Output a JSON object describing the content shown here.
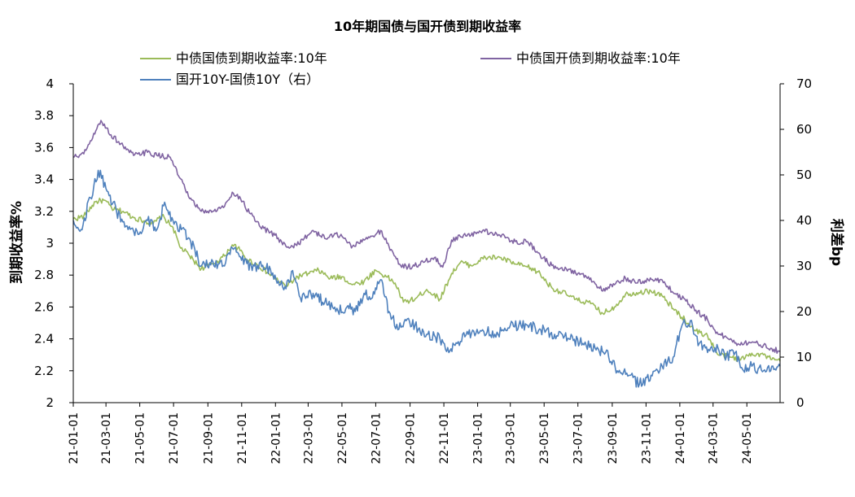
{
  "chart_data": {
    "type": "line",
    "title": "10年期国债与国开债到期收益率",
    "y_left": {
      "label": "到期收益率%",
      "range": [
        2,
        4
      ],
      "ticks": [
        "2",
        "2.2",
        "2.4",
        "2.6",
        "2.8",
        "3",
        "3.2",
        "3.4",
        "3.6",
        "3.8",
        "4"
      ]
    },
    "y_right": {
      "label": "利差bp",
      "range": [
        0,
        70
      ],
      "ticks": [
        "0",
        "10",
        "20",
        "30",
        "40",
        "50",
        "60",
        "70"
      ]
    },
    "x_ticks": [
      "21-01-01",
      "21-03-01",
      "21-05-01",
      "21-07-01",
      "21-09-01",
      "21-11-01",
      "22-01-01",
      "22-03-01",
      "22-05-01",
      "22-07-01",
      "22-09-01",
      "22-11-01",
      "23-01-01",
      "23-03-01",
      "23-05-01",
      "23-07-01",
      "23-09-01",
      "23-11-01",
      "24-01-01",
      "24-03-01",
      "24-05-01"
    ],
    "x_range": [
      "2021-01-01",
      "2024-06-30"
    ],
    "legend_position": "top",
    "series": [
      {
        "name": "中债国债到期收益率:10年",
        "axis": "left",
        "color": "#9bbb59",
        "points": [
          [
            "2021-01-01",
            3.15
          ],
          [
            "2021-01-20",
            3.17
          ],
          [
            "2021-02-10",
            3.26
          ],
          [
            "2021-02-25",
            3.27
          ],
          [
            "2021-03-15",
            3.21
          ],
          [
            "2021-04-01",
            3.2
          ],
          [
            "2021-04-20",
            3.16
          ],
          [
            "2021-05-10",
            3.14
          ],
          [
            "2021-05-25",
            3.12
          ],
          [
            "2021-06-10",
            3.17
          ],
          [
            "2021-06-30",
            3.1
          ],
          [
            "2021-07-12",
            2.98
          ],
          [
            "2021-07-30",
            2.92
          ],
          [
            "2021-08-20",
            2.84
          ],
          [
            "2021-09-10",
            2.87
          ],
          [
            "2021-10-01",
            2.92
          ],
          [
            "2021-10-15",
            2.99
          ],
          [
            "2021-10-25",
            2.97
          ],
          [
            "2021-11-10",
            2.9
          ],
          [
            "2021-12-01",
            2.86
          ],
          [
            "2021-12-31",
            2.78
          ],
          [
            "2022-01-20",
            2.73
          ],
          [
            "2022-02-10",
            2.79
          ],
          [
            "2022-03-01",
            2.81
          ],
          [
            "2022-03-20",
            2.83
          ],
          [
            "2022-04-10",
            2.78
          ],
          [
            "2022-05-01",
            2.79
          ],
          [
            "2022-05-20",
            2.74
          ],
          [
            "2022-06-10",
            2.76
          ],
          [
            "2022-07-01",
            2.83
          ],
          [
            "2022-07-20",
            2.79
          ],
          [
            "2022-08-05",
            2.75
          ],
          [
            "2022-08-20",
            2.63
          ],
          [
            "2022-09-10",
            2.65
          ],
          [
            "2022-10-01",
            2.71
          ],
          [
            "2022-10-25",
            2.65
          ],
          [
            "2022-11-15",
            2.81
          ],
          [
            "2022-12-01",
            2.88
          ],
          [
            "2022-12-20",
            2.86
          ],
          [
            "2023-01-15",
            2.91
          ],
          [
            "2023-02-10",
            2.91
          ],
          [
            "2023-03-10",
            2.87
          ],
          [
            "2023-04-01",
            2.85
          ],
          [
            "2023-04-20",
            2.82
          ],
          [
            "2023-05-15",
            2.72
          ],
          [
            "2023-06-10",
            2.68
          ],
          [
            "2023-07-01",
            2.64
          ],
          [
            "2023-07-20",
            2.63
          ],
          [
            "2023-08-15",
            2.56
          ],
          [
            "2023-09-05",
            2.6
          ],
          [
            "2023-09-25",
            2.68
          ],
          [
            "2023-10-15",
            2.69
          ],
          [
            "2023-11-10",
            2.7
          ],
          [
            "2023-11-30",
            2.67
          ],
          [
            "2023-12-20",
            2.59
          ],
          [
            "2024-01-10",
            2.52
          ],
          [
            "2024-01-30",
            2.45
          ],
          [
            "2024-02-20",
            2.42
          ],
          [
            "2024-03-10",
            2.3
          ],
          [
            "2024-03-30",
            2.29
          ],
          [
            "2024-04-20",
            2.27
          ],
          [
            "2024-05-10",
            2.31
          ],
          [
            "2024-05-31",
            2.3
          ],
          [
            "2024-06-15",
            2.27
          ],
          [
            "2024-06-30",
            2.26
          ]
        ]
      },
      {
        "name": "中债国开债到期收益率:10年",
        "axis": "left",
        "color": "#8064a2",
        "points": [
          [
            "2021-01-01",
            3.54
          ],
          [
            "2021-01-20",
            3.56
          ],
          [
            "2021-02-05",
            3.66
          ],
          [
            "2021-02-20",
            3.77
          ],
          [
            "2021-03-10",
            3.68
          ],
          [
            "2021-04-01",
            3.61
          ],
          [
            "2021-04-20",
            3.55
          ],
          [
            "2021-05-15",
            3.57
          ],
          [
            "2021-06-01",
            3.55
          ],
          [
            "2021-06-25",
            3.54
          ],
          [
            "2021-07-12",
            3.41
          ],
          [
            "2021-07-30",
            3.28
          ],
          [
            "2021-08-20",
            3.2
          ],
          [
            "2021-09-10",
            3.2
          ],
          [
            "2021-10-01",
            3.23
          ],
          [
            "2021-10-15",
            3.32
          ],
          [
            "2021-10-30",
            3.28
          ],
          [
            "2021-11-15",
            3.19
          ],
          [
            "2021-12-05",
            3.1
          ],
          [
            "2021-12-31",
            3.05
          ],
          [
            "2022-01-20",
            2.98
          ],
          [
            "2022-02-01",
            2.98
          ],
          [
            "2022-02-20",
            3.02
          ],
          [
            "2022-03-10",
            3.08
          ],
          [
            "2022-03-31",
            3.03
          ],
          [
            "2022-04-20",
            3.06
          ],
          [
            "2022-05-05",
            3.03
          ],
          [
            "2022-05-20",
            2.98
          ],
          [
            "2022-06-10",
            3.02
          ],
          [
            "2022-06-30",
            3.05
          ],
          [
            "2022-07-10",
            3.08
          ],
          [
            "2022-07-25",
            2.98
          ],
          [
            "2022-08-15",
            2.86
          ],
          [
            "2022-09-05",
            2.85
          ],
          [
            "2022-09-25",
            2.88
          ],
          [
            "2022-10-15",
            2.91
          ],
          [
            "2022-10-30",
            2.85
          ],
          [
            "2022-11-15",
            3.02
          ],
          [
            "2022-12-01",
            3.04
          ],
          [
            "2022-12-20",
            3.05
          ],
          [
            "2023-01-10",
            3.08
          ],
          [
            "2023-02-10",
            3.05
          ],
          [
            "2023-03-10",
            3.01
          ],
          [
            "2023-04-01",
            3.01
          ],
          [
            "2023-04-20",
            2.94
          ],
          [
            "2023-05-15",
            2.86
          ],
          [
            "2023-06-10",
            2.84
          ],
          [
            "2023-07-01",
            2.81
          ],
          [
            "2023-07-20",
            2.79
          ],
          [
            "2023-08-15",
            2.7
          ],
          [
            "2023-09-05",
            2.74
          ],
          [
            "2023-09-25",
            2.78
          ],
          [
            "2023-10-15",
            2.75
          ],
          [
            "2023-11-05",
            2.77
          ],
          [
            "2023-11-30",
            2.77
          ],
          [
            "2023-12-20",
            2.69
          ],
          [
            "2024-01-10",
            2.65
          ],
          [
            "2024-01-30",
            2.58
          ],
          [
            "2024-02-20",
            2.52
          ],
          [
            "2024-03-10",
            2.43
          ],
          [
            "2024-03-25",
            2.41
          ],
          [
            "2024-04-15",
            2.37
          ],
          [
            "2024-05-05",
            2.38
          ],
          [
            "2024-05-31",
            2.36
          ],
          [
            "2024-06-15",
            2.34
          ],
          [
            "2024-06-30",
            2.32
          ]
        ]
      },
      {
        "name": "国开10Y-国债10Y（右）",
        "axis": "right",
        "color": "#4f81bd",
        "points": [
          [
            "2021-01-01",
            40
          ],
          [
            "2021-01-15",
            38
          ],
          [
            "2021-02-01",
            45
          ],
          [
            "2021-02-15",
            51
          ],
          [
            "2021-03-01",
            47
          ],
          [
            "2021-03-20",
            42
          ],
          [
            "2021-04-10",
            38
          ],
          [
            "2021-04-30",
            37
          ],
          [
            "2021-05-15",
            40
          ],
          [
            "2021-06-01",
            38
          ],
          [
            "2021-06-15",
            44
          ],
          [
            "2021-06-30",
            40
          ],
          [
            "2021-07-15",
            38
          ],
          [
            "2021-07-30",
            36
          ],
          [
            "2021-08-20",
            30
          ],
          [
            "2021-09-10",
            31
          ],
          [
            "2021-10-01",
            30
          ],
          [
            "2021-10-15",
            34
          ],
          [
            "2021-10-30",
            32
          ],
          [
            "2021-11-20",
            29
          ],
          [
            "2021-12-05",
            31
          ],
          [
            "2021-12-31",
            28
          ],
          [
            "2022-01-20",
            25
          ],
          [
            "2022-02-01",
            29
          ],
          [
            "2022-02-15",
            23
          ],
          [
            "2022-03-10",
            24
          ],
          [
            "2022-03-31",
            22
          ],
          [
            "2022-04-20",
            20
          ],
          [
            "2022-05-10",
            21
          ],
          [
            "2022-05-25",
            20
          ],
          [
            "2022-06-10",
            24
          ],
          [
            "2022-06-25",
            23
          ],
          [
            "2022-07-10",
            27
          ],
          [
            "2022-07-25",
            20
          ],
          [
            "2022-08-10",
            16
          ],
          [
            "2022-08-25",
            18
          ],
          [
            "2022-09-10",
            17
          ],
          [
            "2022-10-01",
            15
          ],
          [
            "2022-10-25",
            14
          ],
          [
            "2022-11-10",
            11
          ],
          [
            "2022-11-25",
            13
          ],
          [
            "2022-12-15",
            15
          ],
          [
            "2023-01-10",
            16
          ],
          [
            "2023-02-01",
            15
          ],
          [
            "2023-03-01",
            17
          ],
          [
            "2023-04-01",
            17
          ],
          [
            "2023-04-25",
            16
          ],
          [
            "2023-05-20",
            15
          ],
          [
            "2023-06-15",
            14
          ],
          [
            "2023-07-10",
            13
          ],
          [
            "2023-08-01",
            12
          ],
          [
            "2023-08-20",
            11
          ],
          [
            "2023-09-10",
            7
          ],
          [
            "2023-10-01",
            6
          ],
          [
            "2023-10-20",
            4
          ],
          [
            "2023-11-10",
            6
          ],
          [
            "2023-11-30",
            8
          ],
          [
            "2023-12-20",
            10
          ],
          [
            "2024-01-05",
            17
          ],
          [
            "2024-01-20",
            18
          ],
          [
            "2024-02-05",
            13
          ],
          [
            "2024-02-20",
            11
          ],
          [
            "2024-03-10",
            12
          ],
          [
            "2024-03-25",
            10
          ],
          [
            "2024-04-10",
            11
          ],
          [
            "2024-04-25",
            7
          ],
          [
            "2024-05-10",
            8
          ],
          [
            "2024-05-31",
            7
          ],
          [
            "2024-06-15",
            8
          ],
          [
            "2024-06-30",
            8
          ]
        ]
      }
    ]
  }
}
